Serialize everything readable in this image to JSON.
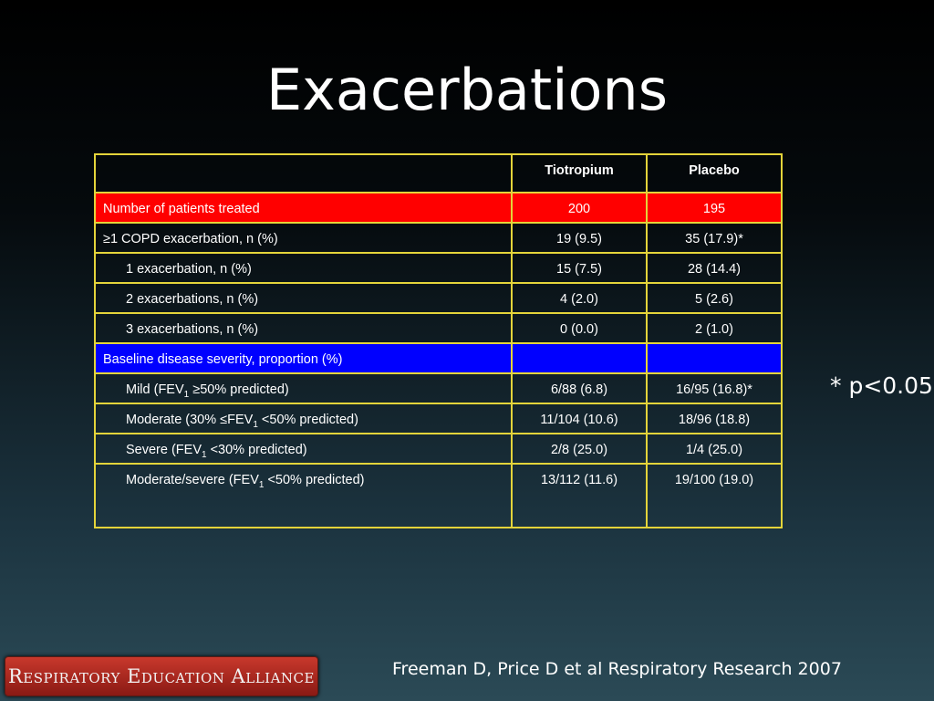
{
  "title": "Exacerbations",
  "table": {
    "columns": [
      "Tiotropium",
      "Placebo"
    ],
    "rows": [
      {
        "label": "Number of patients treated",
        "values": [
          "200",
          "195"
        ]
      },
      {
        "label": "≥1 COPD exacerbation, n (%)",
        "values": [
          "19 (9.5)",
          "35 (17.9)*"
        ]
      },
      {
        "label": "1 exacerbation, n (%)",
        "values": [
          "15 (7.5)",
          "28 (14.4)"
        ]
      },
      {
        "label": "2 exacerbations, n (%)",
        "values": [
          "4 (2.0)",
          "5 (2.6)"
        ]
      },
      {
        "label": "3 exacerbations, n (%)",
        "values": [
          "0 (0.0)",
          "2 (1.0)"
        ]
      },
      {
        "label": "Baseline disease severity, proportion (%)"
      },
      {
        "label": [
          "Mild (FEV",
          "1",
          " ≥50% predicted)"
        ],
        "values": [
          "6/88 (6.8)",
          "16/95 (16.8)*"
        ]
      },
      {
        "label": [
          "Moderate (30% ≤FEV",
          "1",
          " <50% predicted)"
        ],
        "values": [
          "11/104 (10.6)",
          "18/96 (18.8)"
        ]
      },
      {
        "label": [
          "Severe (FEV",
          "1",
          " <30% predicted)"
        ],
        "values": [
          "2/8 (25.0)",
          "1/4 (25.0)"
        ]
      },
      {
        "label": [
          "Moderate/severe (FEV",
          "1",
          " <50% predicted)"
        ],
        "values": [
          "13/112 (11.6)",
          "19/100 (19.0)"
        ]
      }
    ]
  },
  "footnote": "* p<0.05",
  "citation": "Freeman D, Price D et al Respiratory Research 2007",
  "logo": "Respiratory Education Alliance"
}
